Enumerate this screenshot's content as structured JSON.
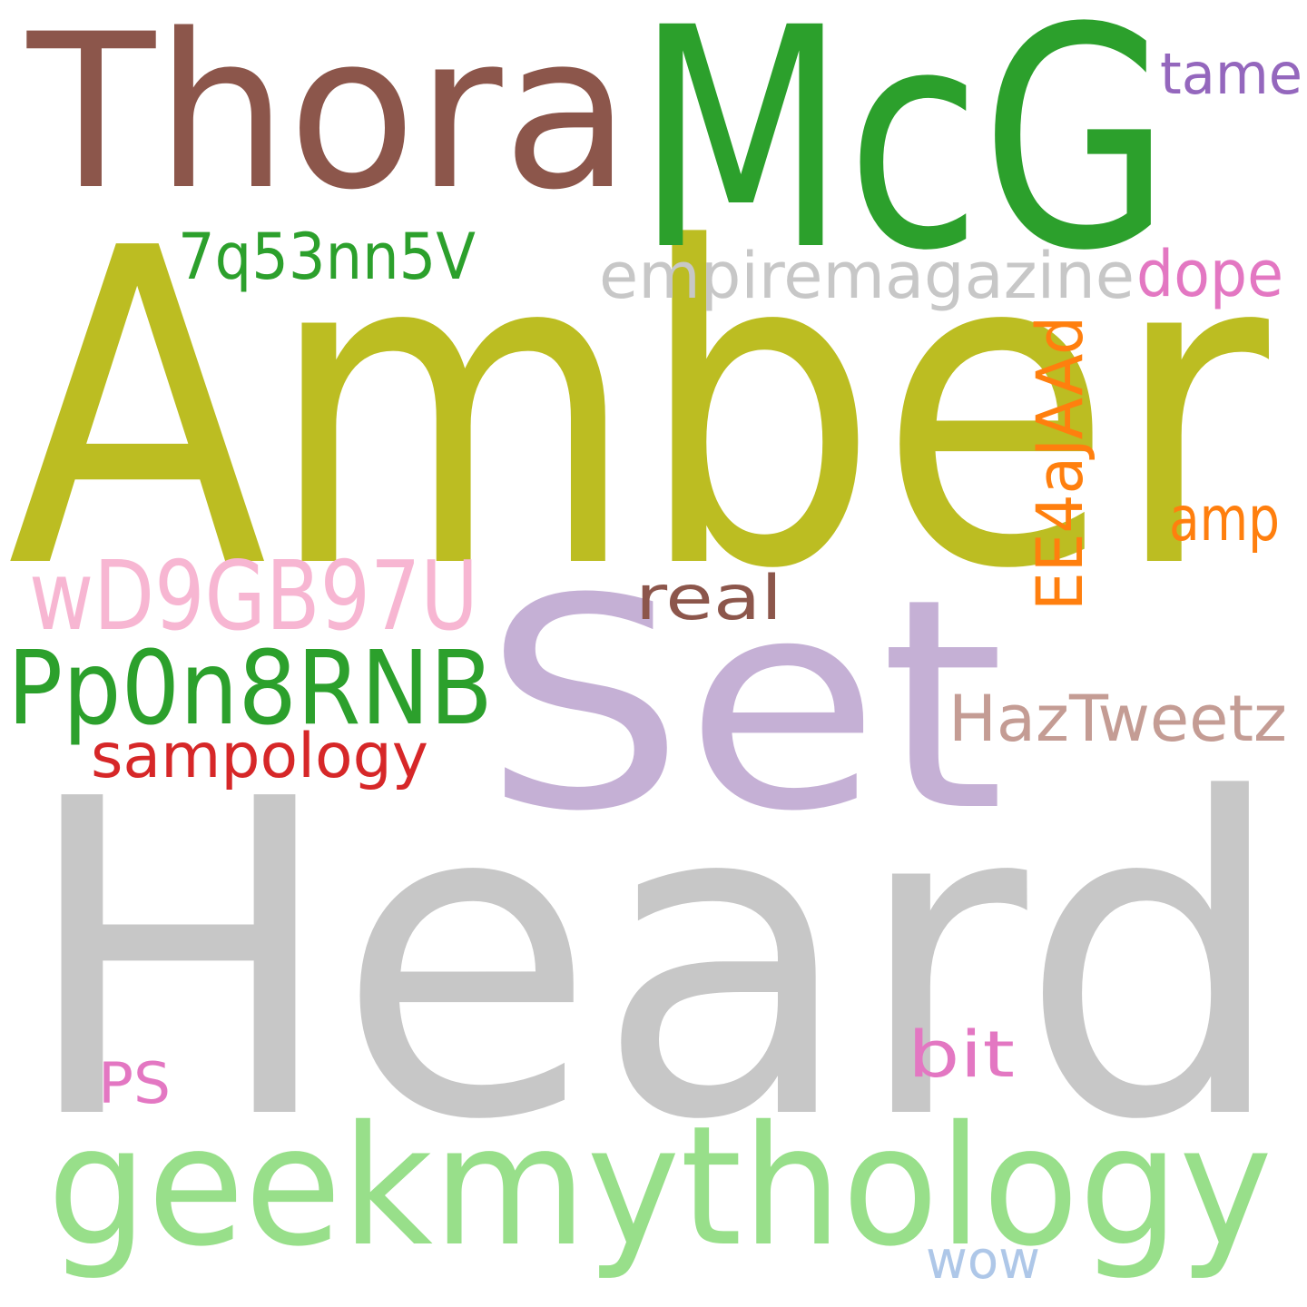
{
  "words": [
    {
      "text": "Heard",
      "color": "#c7c7c7"
    },
    {
      "text": "Amber",
      "color": "#bcbd22"
    },
    {
      "text": "McG",
      "color": "#2ca02c"
    },
    {
      "text": "Thora",
      "color": "#8c564b"
    },
    {
      "text": "Set",
      "color": "#c5b0d5"
    },
    {
      "text": "geekmythology",
      "color": "#98df8a"
    },
    {
      "text": "wD9GB97U",
      "color": "#f7b6d2"
    },
    {
      "text": "Pp0n8RNB",
      "color": "#2ca02c"
    },
    {
      "text": "empiremagazine",
      "color": "#c7c7c7"
    },
    {
      "text": "7q53nn5V",
      "color": "#2ca02c"
    },
    {
      "text": "EE4aJAAd",
      "color": "#ff7f0e"
    },
    {
      "text": "HazTweetz",
      "color": "#c49c94"
    },
    {
      "text": "sampology",
      "color": "#d62728"
    },
    {
      "text": "dope",
      "color": "#e377c2"
    },
    {
      "text": "tame",
      "color": "#9467bd"
    },
    {
      "text": "amp",
      "color": "#ff7f0e"
    },
    {
      "text": "real",
      "color": "#8c564b"
    },
    {
      "text": "bit",
      "color": "#e377c2"
    },
    {
      "text": "PS",
      "color": "#e377c2"
    },
    {
      "text": "wow",
      "color": "#aec7e8"
    }
  ]
}
